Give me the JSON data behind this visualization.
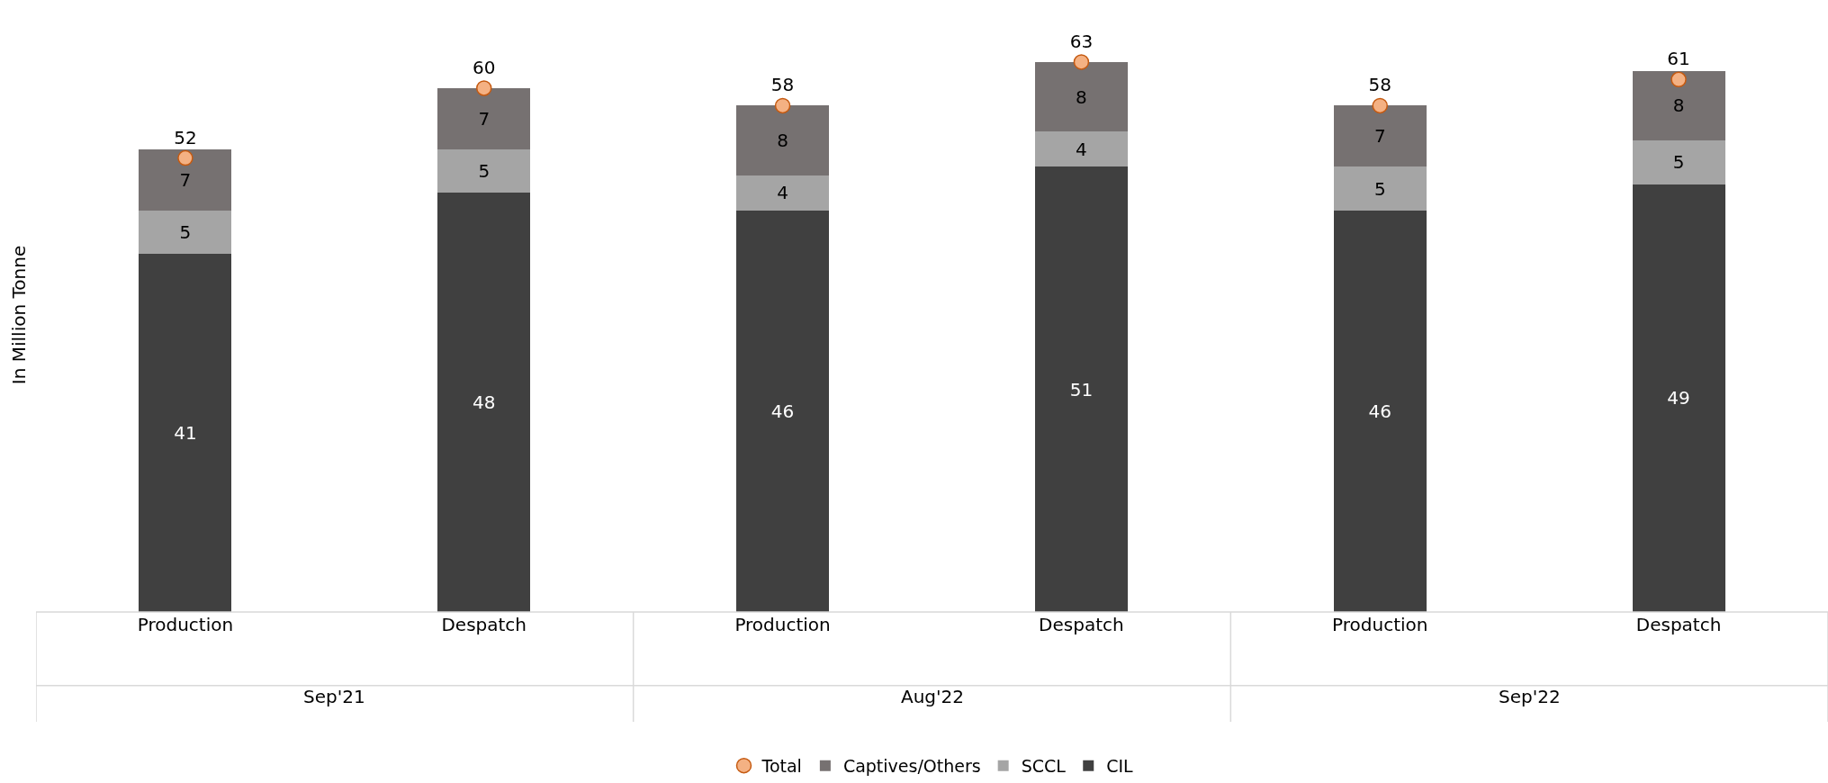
{
  "chart_data": {
    "type": "bar",
    "stacked": true,
    "ylabel": "In Million Tonne",
    "categories": [
      "Production",
      "Despatch",
      "Production",
      "Despatch",
      "Production",
      "Despatch"
    ],
    "series": [
      {
        "name": "CIL",
        "color": "#404040",
        "values": [
          41,
          48,
          46,
          51,
          46,
          49
        ]
      },
      {
        "name": "SCCL",
        "color": "#a5a5a5",
        "values": [
          5,
          5,
          4,
          4,
          5,
          5
        ]
      },
      {
        "name": "Captives/Others",
        "color": "#767171",
        "values": [
          7,
          7,
          8,
          8,
          7,
          8
        ]
      },
      {
        "name": "Total",
        "type": "scatter",
        "color": "#f4b183",
        "values": [
          52,
          60,
          58,
          63,
          58,
          61
        ]
      }
    ],
    "marker": "circle",
    "data_labels": true,
    "legend": "bottom",
    "annotations": [
      "Sep'21",
      "Aug'22",
      "Sep'22"
    ]
  }
}
